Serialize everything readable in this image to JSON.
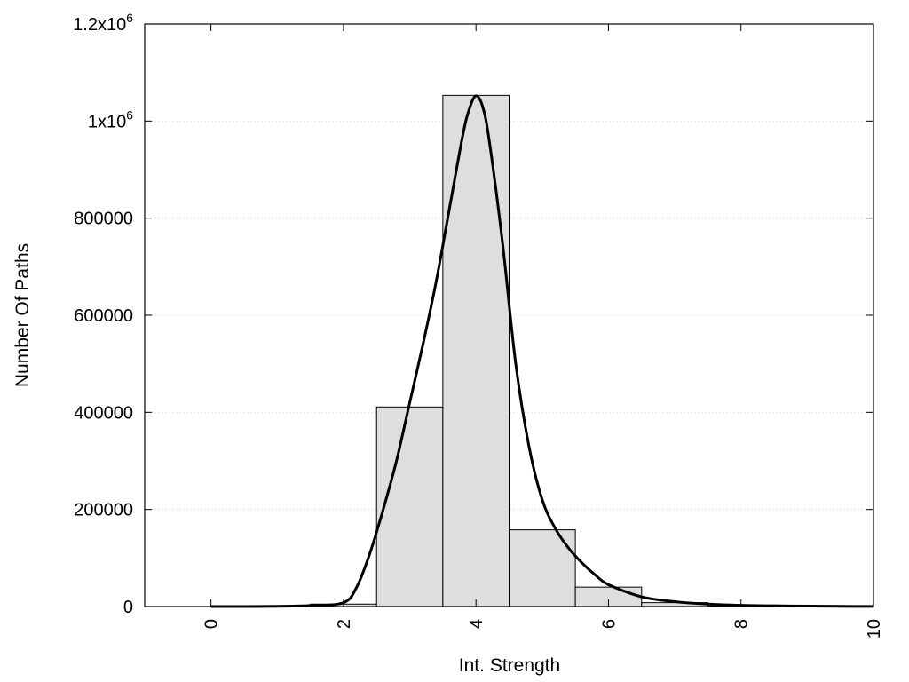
{
  "chart_data": {
    "type": "bar",
    "title": "",
    "xlabel": "Int. Strength",
    "ylabel": "Number Of Paths",
    "xlim": [
      -1,
      10
    ],
    "ylim": [
      0,
      1200000
    ],
    "grid": true,
    "x_ticks": [
      {
        "value": 0,
        "label": "0"
      },
      {
        "value": 2,
        "label": "2"
      },
      {
        "value": 4,
        "label": "4"
      },
      {
        "value": 6,
        "label": "6"
      },
      {
        "value": 8,
        "label": "8"
      },
      {
        "value": 10,
        "label": "10"
      }
    ],
    "y_ticks": [
      {
        "value": 0,
        "label": "0",
        "base": "0",
        "exp": ""
      },
      {
        "value": 200000,
        "label": "200000",
        "base": "200000",
        "exp": ""
      },
      {
        "value": 400000,
        "label": "400000",
        "base": "400000",
        "exp": ""
      },
      {
        "value": 600000,
        "label": "600000",
        "base": "600000",
        "exp": ""
      },
      {
        "value": 800000,
        "label": "800000",
        "base": "800000",
        "exp": ""
      },
      {
        "value": 1000000,
        "label": "1x10^6",
        "base": "1x10",
        "exp": "6"
      },
      {
        "value": 1200000,
        "label": "1.2x10^6",
        "base": "1.2x10",
        "exp": "6"
      }
    ],
    "histogram": {
      "bin_width": 1,
      "categories": [
        0,
        1,
        2,
        3,
        4,
        5,
        6,
        7,
        8,
        9,
        10
      ],
      "values": [
        0,
        1000,
        5000,
        411000,
        1053000,
        158000,
        40000,
        8000,
        1000,
        0,
        0
      ],
      "fill": "#dedede",
      "stroke": "#000000"
    },
    "curve": {
      "x": [
        0,
        0.5,
        1,
        1.5,
        2,
        2.2,
        2.4,
        2.6,
        2.8,
        3,
        3.2,
        3.4,
        3.6,
        3.8,
        3.9,
        4,
        4.1,
        4.2,
        4.4,
        4.6,
        4.8,
        5,
        5.2,
        5.4,
        5.6,
        5.8,
        6,
        6.5,
        7,
        7.5,
        8,
        8.5,
        9,
        9.5,
        10
      ],
      "y": [
        0,
        0,
        500,
        2000,
        8000,
        40000,
        110000,
        200000,
        300000,
        420000,
        540000,
        670000,
        820000,
        970000,
        1025000,
        1052000,
        1030000,
        960000,
        750000,
        500000,
        330000,
        220000,
        160000,
        120000,
        90000,
        65000,
        45000,
        20000,
        10000,
        5000,
        2500,
        1500,
        800,
        400,
        200
      ],
      "color": "#000000"
    }
  }
}
